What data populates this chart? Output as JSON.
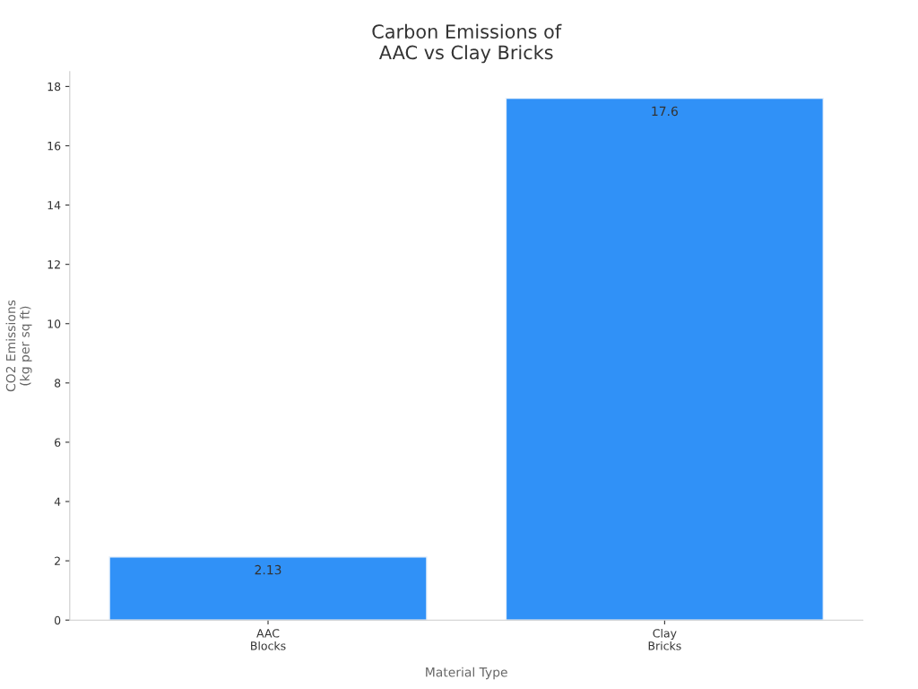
{
  "chart_data": {
    "type": "bar",
    "title": "Carbon Emissions of\nAAC vs Clay Bricks",
    "xlabel": "Material Type",
    "ylabel": "CO2 Emissions\n(kg per sq ft)",
    "categories": [
      "AAC\nBlocks",
      "Clay\nBricks"
    ],
    "values": [
      2.13,
      17.6
    ],
    "color": "#3091f7",
    "ylim": [
      0,
      18.5
    ],
    "yticks": [
      0,
      2,
      4,
      6,
      8,
      10,
      12,
      14,
      16,
      18
    ],
    "grid": false,
    "data_labels": true
  }
}
